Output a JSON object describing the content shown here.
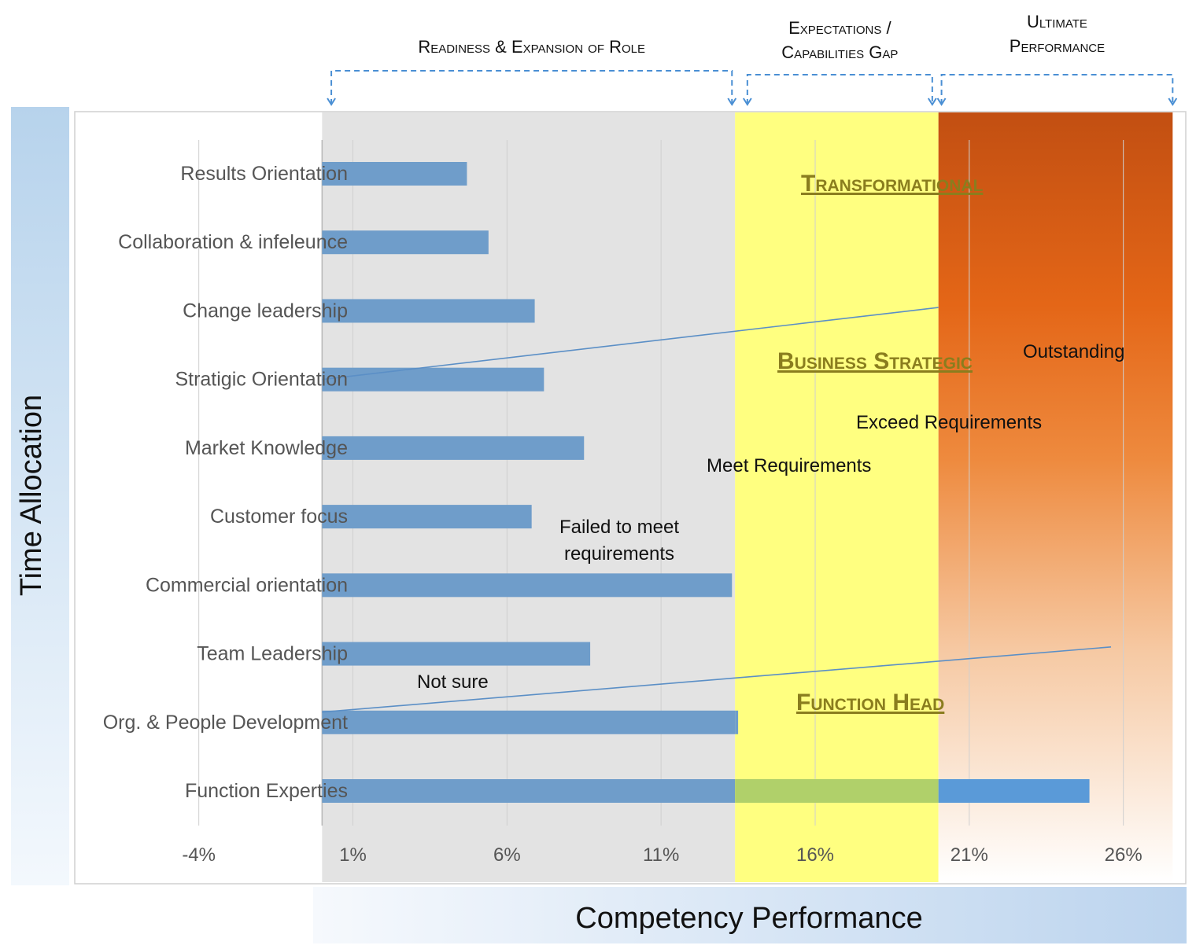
{
  "chart_data": {
    "type": "bar",
    "orientation": "horizontal",
    "categories": [
      "Results Orientation",
      "Collaboration & infeleunce",
      "Change leadership",
      "Stratigic Orientation",
      "Market Knowledge",
      "Customer focus",
      "Commercial orientation",
      "Team Leadership",
      "Org. & People Development",
      "Function Experties"
    ],
    "values": [
      4.7,
      5.4,
      6.9,
      7.2,
      8.5,
      6.8,
      13.3,
      8.7,
      13.5,
      24.9
    ],
    "x_baseline": 0,
    "xlim": [
      -8,
      28
    ],
    "x_ticks": [
      -4,
      1,
      6,
      11,
      16,
      21,
      26
    ],
    "x_tick_labels": [
      "-4%",
      "1%",
      "6%",
      "11%",
      "16%",
      "21%",
      "26%"
    ],
    "xlabel": "Competency Performance",
    "ylabel": "Time Allocation",
    "grid": "vertical",
    "zones": [
      {
        "from": 0,
        "to": 13.4,
        "color": "#e3e3e3"
      },
      {
        "from": 13.4,
        "to": 20,
        "color": "#ffff80"
      },
      {
        "from": 20,
        "to": 27.6,
        "color": "#e46617"
      }
    ],
    "bar_colors": {
      "default": "#6f9dca",
      "gap_segment": "#b0d06a",
      "ultimate_segment": "#5a9ad8"
    },
    "brackets": [
      {
        "label": "Readiness & Expansion of Role",
        "from": 0.3,
        "to": 13.3
      },
      {
        "label": "Expectations / Capabilities Gap",
        "from": 13.8,
        "to": 19.8
      },
      {
        "label": "Ultimate Performance",
        "from": 20.1,
        "to": 27.6
      }
    ],
    "trend_lines": [
      {
        "from": [
          0,
          3.0
        ],
        "to": [
          20,
          1.95
        ]
      },
      {
        "from": [
          0,
          7.85
        ],
        "to": [
          25.6,
          6.9
        ]
      }
    ],
    "annotations": {
      "not_sure": "Not sure",
      "failed_1": "Failed to meet",
      "failed_2": "requirements",
      "meet": "Meet Requirements",
      "exceed": "Exceed Requirements",
      "outstanding": "Outstanding",
      "transformational": "Transformational",
      "business_strategic": "Business Strategic",
      "function_head": "Function Head"
    }
  }
}
